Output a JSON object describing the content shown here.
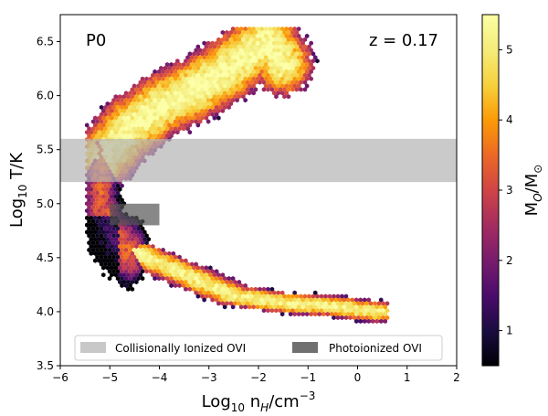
{
  "chart_data": {
    "type": "heatmap",
    "panel_label": "P0",
    "redshift_label": "z = 0.17",
    "xlabel": {
      "prefix": "Log",
      "sub": "10",
      "mid": " n",
      "sub2": "H",
      "tail": "/cm",
      "sup": "−3"
    },
    "ylabel": {
      "prefix": "Log",
      "sub": "10",
      "tail": " T/K"
    },
    "xlim": [
      -6,
      2
    ],
    "ylim": [
      3.5,
      6.75
    ],
    "xticks": [
      -6,
      -5,
      -4,
      -3,
      -2,
      -1,
      0,
      1,
      2
    ],
    "xtick_labels": [
      "−6",
      "−5",
      "−4",
      "−3",
      "−2",
      "−1",
      "0",
      "1",
      "2"
    ],
    "yticks": [
      3.5,
      4.0,
      4.5,
      5.0,
      5.5,
      6.0,
      6.5
    ],
    "ytick_labels": [
      "3.5",
      "4.0",
      "4.5",
      "5.0",
      "5.5",
      "6.0",
      "6.5"
    ],
    "colorbar": {
      "label_main": "M",
      "label_sub": "O",
      "label_mid": "/M",
      "label_sub2": "⊙",
      "range": [
        0.5,
        5.5
      ],
      "ticks": [
        1,
        2,
        3,
        4,
        5
      ],
      "tick_labels": [
        "1",
        "2",
        "3",
        "4",
        "5"
      ],
      "colormap": "inferno"
    },
    "regions": [
      {
        "name": "Collisionally Ionized OVI",
        "x": [
          -6,
          2
        ],
        "y": [
          5.2,
          5.6
        ],
        "color": "#b4b4b4",
        "opacity": 0.7
      },
      {
        "name": "Photoionized OVI",
        "x": [
          -5,
          -4
        ],
        "y": [
          4.8,
          5.0
        ],
        "color": "#555555",
        "opacity": 0.7
      }
    ],
    "legend": {
      "position": "lower-center",
      "entries": [
        "Collisionally Ionized OVI",
        "Photoionized OVI"
      ]
    },
    "distribution_description_points": {
      "upper_arc_nH": [
        -5.1,
        -4.6,
        -4.0,
        -3.3,
        -2.6,
        -2.2,
        -1.8,
        -1.5
      ],
      "upper_arc_logT": [
        5.45,
        5.7,
        5.9,
        6.05,
        6.25,
        6.4,
        6.5,
        6.3
      ],
      "lower_tail_nH": [
        -4.5,
        -3.5,
        -2.5,
        -1.5,
        -0.5,
        0.0,
        0.4
      ],
      "lower_tail_logT": [
        4.55,
        4.35,
        4.15,
        4.08,
        4.05,
        4.02,
        4.0
      ]
    }
  }
}
